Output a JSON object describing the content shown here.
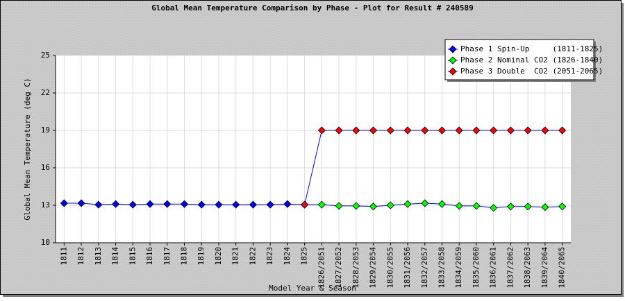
{
  "chart_data": {
    "type": "line",
    "title": "Global Mean Temperature Comparison by Phase - Plot for Result # 240589",
    "x_label": "Model Year & Season",
    "y_label": "Global Mean Temperature (deg C)",
    "categories": [
      "1811",
      "1812",
      "1813",
      "1814",
      "1815",
      "1816",
      "1817",
      "1818",
      "1819",
      "1820",
      "1821",
      "1822",
      "1823",
      "1824",
      "1825",
      "1826/2051",
      "1827/2052",
      "1828/2053",
      "1829/2054",
      "1830/2055",
      "1831/2056",
      "1832/2057",
      "1833/2058",
      "1834/2059",
      "1835/2060",
      "1836/2061",
      "1837/2062",
      "1838/2063",
      "1839/2064",
      "1840/2065"
    ],
    "series": [
      {
        "name": "Phase 1 Spin-Up     (1811-1825)",
        "color": "#0000ff",
        "values": [
          13.17,
          13.17,
          13.05,
          13.1,
          13.05,
          13.1,
          13.1,
          13.1,
          13.05,
          13.05,
          13.05,
          13.05,
          13.05,
          13.1,
          13.05,
          null,
          null,
          null,
          null,
          null,
          null,
          null,
          null,
          null,
          null,
          null,
          null,
          null,
          null,
          null
        ]
      },
      {
        "name": "Phase 2 Nominal CO2 (1826-1840)",
        "color": "#00ff00",
        "values": [
          null,
          null,
          null,
          null,
          null,
          null,
          null,
          null,
          null,
          null,
          null,
          null,
          null,
          null,
          13.05,
          13.05,
          12.95,
          12.95,
          12.9,
          13.0,
          13.1,
          13.17,
          13.1,
          12.95,
          12.95,
          12.8,
          12.9,
          12.9,
          12.85,
          12.9
        ]
      },
      {
        "name": "Phase 3 Double  CO2 (2051-2065)",
        "color": "#ff0000",
        "values": [
          null,
          null,
          null,
          null,
          null,
          null,
          null,
          null,
          null,
          null,
          null,
          null,
          null,
          null,
          13.05,
          19,
          19,
          19,
          19,
          19,
          19,
          19,
          19,
          19,
          19,
          19,
          19,
          19,
          19,
          19
        ]
      }
    ],
    "line_color": "#0000ff",
    "ylim": [
      10,
      25
    ],
    "yticks": [
      10,
      13,
      16,
      19,
      22,
      25
    ],
    "grid": true,
    "legend": "top-right"
  }
}
